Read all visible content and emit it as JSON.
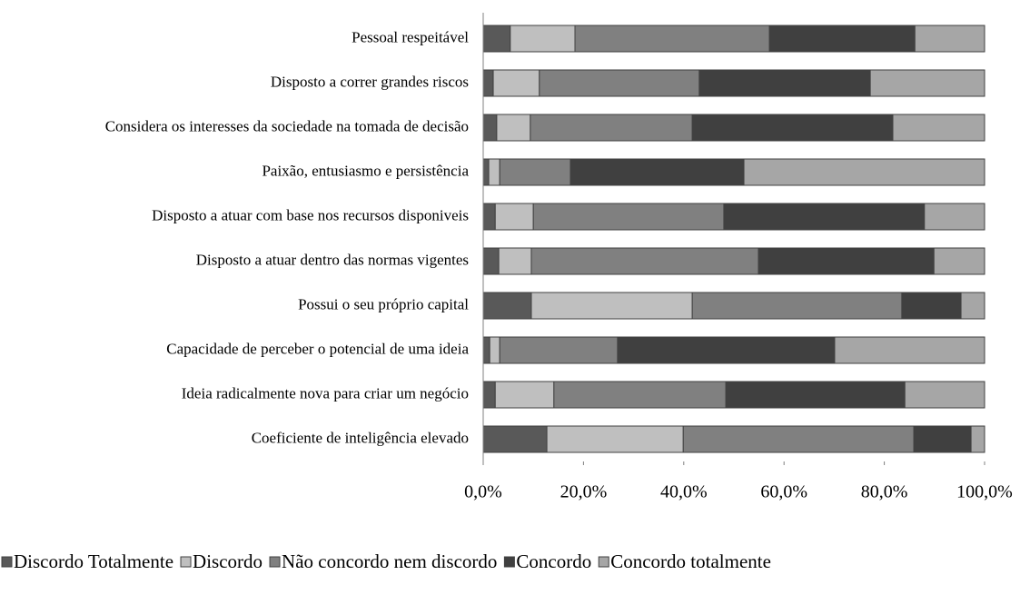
{
  "chart_data": {
    "type": "stacked_barh",
    "categories": [
      "Pessoal respeitável",
      "Disposto a correr grandes riscos",
      "Considera os interesses da sociedade na tomada de decisão",
      "Paixão, entusiasmo e persistência",
      "Disposto a atuar com base nos recursos disponiveis",
      "Disposto a atuar dentro das normas vigentes",
      "Possui o seu próprio capital",
      "Capacidade de perceber o potencial de uma ideia",
      "Ideia radicalmente nova para criar um negócio",
      "Coeficiente de inteligência elevado"
    ],
    "series": [
      {
        "name": "Discordo Totalmente",
        "color": "#595959",
        "values": [
          5.4,
          2.0,
          2.7,
          1.1,
          2.4,
          3.1,
          9.6,
          1.3,
          2.4,
          12.7
        ]
      },
      {
        "name": "Discordo",
        "color": "#bfbfbf",
        "values": [
          12.9,
          9.2,
          6.7,
          2.2,
          7.6,
          6.5,
          32.1,
          2.0,
          11.7,
          27.2
        ]
      },
      {
        "name": "Não concordo nem discordo",
        "color": "#808080",
        "values": [
          38.8,
          31.9,
          32.3,
          14.1,
          38.0,
          45.3,
          41.8,
          23.5,
          34.3,
          46.0
        ]
      },
      {
        "name": "Concordo",
        "color": "#404040",
        "values": [
          29.0,
          34.1,
          40.0,
          34.6,
          40.0,
          35.0,
          11.8,
          43.3,
          35.7,
          11.4
        ]
      },
      {
        "name": "Concordo totalmente",
        "color": "#a6a6a6",
        "values": [
          13.9,
          22.8,
          18.3,
          48.0,
          12.0,
          10.1,
          4.7,
          29.9,
          15.9,
          2.7
        ]
      }
    ],
    "xlim": [
      0,
      100
    ],
    "xticks": [
      {
        "value": 0,
        "label": "0,0%"
      },
      {
        "value": 20,
        "label": "20,0%"
      },
      {
        "value": 40,
        "label": "40,0%"
      },
      {
        "value": 60,
        "label": "60,0%"
      },
      {
        "value": 80,
        "label": "80,0%"
      },
      {
        "value": 100,
        "label": "100,0%"
      }
    ]
  }
}
